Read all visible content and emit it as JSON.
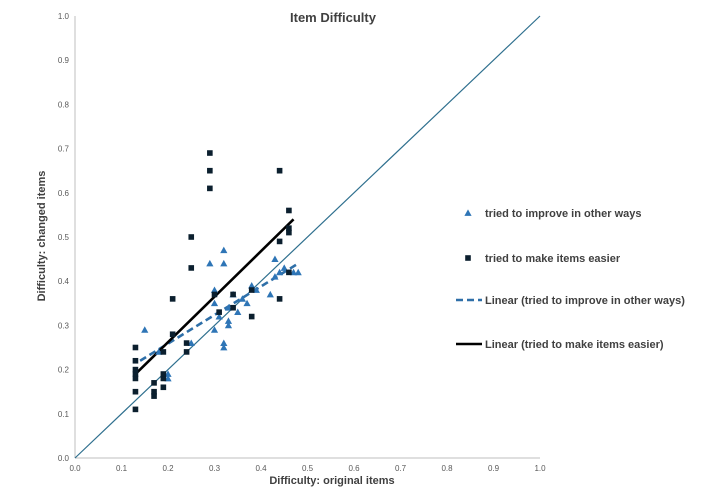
{
  "chart_data": {
    "type": "scatter",
    "title": "Item Difficulty",
    "xlabel": "Difficulty: original items",
    "ylabel": "Difficulty: changed items",
    "xlim": [
      0,
      1
    ],
    "ylim": [
      0,
      1
    ],
    "x_ticks": [
      "0.0",
      "0.1",
      "0.2",
      "0.3",
      "0.4",
      "0.5",
      "0.6",
      "0.7",
      "0.8",
      "0.9",
      "1.0"
    ],
    "y_ticks": [
      "0.0",
      "0.1",
      "0.2",
      "0.3",
      "0.4",
      "0.5",
      "0.6",
      "0.7",
      "0.8",
      "0.9",
      "1.0"
    ],
    "grid": false,
    "legend_position": "right",
    "reference_line": {
      "from": [
        0,
        0
      ],
      "to": [
        1,
        1
      ],
      "color": "#2e6f8e"
    },
    "series": [
      {
        "name": "tried to improve in other ways",
        "marker": "triangle",
        "color": "#2e75b6",
        "points": [
          [
            0.15,
            0.29
          ],
          [
            0.18,
            0.24
          ],
          [
            0.2,
            0.19
          ],
          [
            0.2,
            0.18
          ],
          [
            0.25,
            0.26
          ],
          [
            0.29,
            0.44
          ],
          [
            0.3,
            0.38
          ],
          [
            0.3,
            0.35
          ],
          [
            0.3,
            0.29
          ],
          [
            0.31,
            0.32
          ],
          [
            0.32,
            0.25
          ],
          [
            0.32,
            0.26
          ],
          [
            0.32,
            0.47
          ],
          [
            0.32,
            0.44
          ],
          [
            0.33,
            0.31
          ],
          [
            0.33,
            0.3
          ],
          [
            0.33,
            0.34
          ],
          [
            0.34,
            0.37
          ],
          [
            0.35,
            0.33
          ],
          [
            0.36,
            0.36
          ],
          [
            0.37,
            0.35
          ],
          [
            0.38,
            0.39
          ],
          [
            0.39,
            0.38
          ],
          [
            0.42,
            0.37
          ],
          [
            0.43,
            0.45
          ],
          [
            0.43,
            0.41
          ],
          [
            0.44,
            0.42
          ],
          [
            0.45,
            0.43
          ],
          [
            0.47,
            0.42
          ],
          [
            0.48,
            0.42
          ]
        ]
      },
      {
        "name": "tried to make items easier",
        "marker": "square",
        "color": "#0b1f2e",
        "points": [
          [
            0.13,
            0.11
          ],
          [
            0.13,
            0.15
          ],
          [
            0.13,
            0.18
          ],
          [
            0.13,
            0.19
          ],
          [
            0.13,
            0.2
          ],
          [
            0.13,
            0.22
          ],
          [
            0.13,
            0.25
          ],
          [
            0.17,
            0.14
          ],
          [
            0.17,
            0.15
          ],
          [
            0.17,
            0.17
          ],
          [
            0.19,
            0.16
          ],
          [
            0.19,
            0.18
          ],
          [
            0.19,
            0.19
          ],
          [
            0.19,
            0.24
          ],
          [
            0.21,
            0.36
          ],
          [
            0.21,
            0.28
          ],
          [
            0.24,
            0.24
          ],
          [
            0.24,
            0.26
          ],
          [
            0.25,
            0.5
          ],
          [
            0.25,
            0.43
          ],
          [
            0.29,
            0.69
          ],
          [
            0.29,
            0.65
          ],
          [
            0.29,
            0.61
          ],
          [
            0.3,
            0.37
          ],
          [
            0.31,
            0.33
          ],
          [
            0.34,
            0.34
          ],
          [
            0.34,
            0.37
          ],
          [
            0.38,
            0.38
          ],
          [
            0.38,
            0.32
          ],
          [
            0.44,
            0.65
          ],
          [
            0.44,
            0.49
          ],
          [
            0.44,
            0.36
          ],
          [
            0.46,
            0.56
          ],
          [
            0.46,
            0.52
          ],
          [
            0.46,
            0.51
          ],
          [
            0.46,
            0.42
          ]
        ]
      }
    ],
    "trendlines": [
      {
        "name": "Linear (tried to improve in other ways)",
        "style": "dashed",
        "color": "#2e6fa8",
        "from": [
          0.14,
          0.22
        ],
        "to": [
          0.48,
          0.44
        ]
      },
      {
        "name": "Linear (tried to make items easier)",
        "style": "solid",
        "color": "#000000",
        "from": [
          0.13,
          0.19
        ],
        "to": [
          0.47,
          0.54
        ]
      }
    ]
  }
}
